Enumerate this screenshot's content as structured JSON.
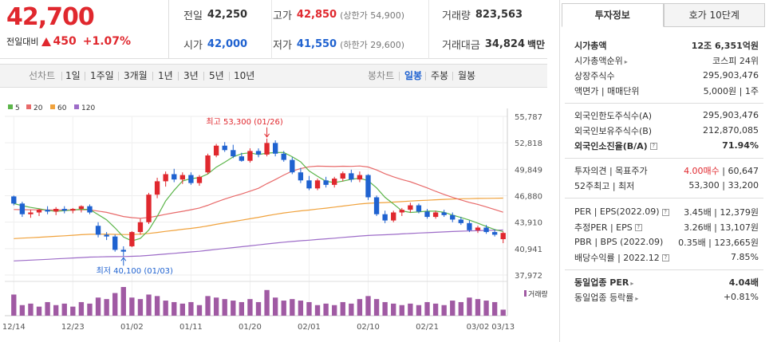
{
  "quote": {
    "price": "42,700",
    "change_label": "전일대비",
    "change_amount": "450",
    "change_pct": "+1.07%"
  },
  "stats": {
    "prev_label": "전일",
    "prev": "42,250",
    "high_label": "고가",
    "high": "42,850",
    "upper_limit": "(상한가 54,900)",
    "volume_label": "거래량",
    "volume": "823,563",
    "open_label": "시가",
    "open": "42,000",
    "low_label": "저가",
    "low": "41,550",
    "lower_limit": "(하한가 29,600)",
    "amount_label": "거래대금",
    "amount": "34,824",
    "amount_unit": "백만"
  },
  "toolbar": {
    "line_chart": "선차트",
    "periods": [
      "1일",
      "1주일",
      "3개월",
      "1년",
      "3년",
      "5년",
      "10년"
    ],
    "candle_chart": "봉차트",
    "candle_periods": [
      "일봉",
      "주봉",
      "월봉"
    ],
    "active_candle": "일봉"
  },
  "colors": {
    "up": "#e0282e",
    "down": "#1f62d0",
    "ma5": "#5cb54a",
    "ma20": "#e86a6a",
    "ma60": "#f0a23c",
    "ma120": "#9d6cc8"
  },
  "chart_data": {
    "type": "candlestick",
    "legend": [
      {
        "name": "5",
        "color": "#5cb54a"
      },
      {
        "name": "20",
        "color": "#e86a6a"
      },
      {
        "name": "60",
        "color": "#f0a23c"
      },
      {
        "name": "120",
        "color": "#9d6cc8"
      }
    ],
    "y_ticks": [
      55787,
      52818,
      49849,
      46880,
      43910,
      40941,
      37972
    ],
    "y_tick_labels": [
      "55,787",
      "52,818",
      "49,849",
      "46,880",
      "43,910",
      "40,941",
      "37,972"
    ],
    "ylim": [
      37972,
      55787
    ],
    "x_labels": [
      "12/14",
      "12/23",
      "01/02",
      "01/11",
      "01/20",
      "02/01",
      "02/10",
      "02/21",
      "03/02",
      "03/13"
    ],
    "annotation_high": "최고 53,300 (01/26)",
    "annotation_low": "최저 40,100 (01/03)",
    "volume_label": "거래량",
    "candles": [
      [
        46800,
        46900,
        45800,
        46000
      ],
      [
        46000,
        46200,
        44500,
        44800
      ],
      [
        44800,
        45300,
        44400,
        45000
      ],
      [
        45000,
        45400,
        44600,
        45300
      ],
      [
        45300,
        45700,
        44800,
        45100
      ],
      [
        45100,
        45600,
        44700,
        45400
      ],
      [
        45400,
        45700,
        44900,
        45200
      ],
      [
        45200,
        45500,
        44900,
        45400
      ],
      [
        45400,
        45800,
        45000,
        45700
      ],
      [
        45700,
        45900,
        44800,
        45000
      ],
      [
        43500,
        43900,
        42200,
        42500
      ],
      [
        42500,
        42800,
        41900,
        42300
      ],
      [
        42300,
        42500,
        40600,
        40800
      ],
      [
        40800,
        41200,
        40100,
        40600
      ],
      [
        41200,
        42900,
        41100,
        42800
      ],
      [
        42800,
        44300,
        42500,
        43900
      ],
      [
        43900,
        47200,
        43700,
        47000
      ],
      [
        47000,
        48900,
        46600,
        48500
      ],
      [
        48500,
        49600,
        47900,
        49300
      ],
      [
        49300,
        49900,
        48400,
        48700
      ],
      [
        48700,
        49500,
        48200,
        49200
      ],
      [
        49200,
        49500,
        48100,
        48300
      ],
      [
        48300,
        49200,
        48000,
        49000
      ],
      [
        49500,
        51600,
        49300,
        51400
      ],
      [
        51400,
        52700,
        51200,
        52500
      ],
      [
        52500,
        52900,
        51800,
        52000
      ],
      [
        52000,
        52600,
        51100,
        51300
      ],
      [
        51300,
        51700,
        50700,
        50800
      ],
      [
        50800,
        52200,
        50600,
        51900
      ],
      [
        51900,
        52200,
        51200,
        51500
      ],
      [
        51500,
        53300,
        51300,
        52800
      ],
      [
        52800,
        53100,
        51300,
        51600
      ],
      [
        51600,
        51900,
        50700,
        50900
      ],
      [
        50900,
        51200,
        49300,
        49500
      ],
      [
        49500,
        50000,
        48300,
        48600
      ],
      [
        48600,
        49100,
        47500,
        47700
      ],
      [
        47700,
        48800,
        47500,
        48600
      ],
      [
        48600,
        49000,
        47800,
        48100
      ],
      [
        48100,
        49000,
        47800,
        48800
      ],
      [
        48800,
        49600,
        48500,
        49400
      ],
      [
        49400,
        49800,
        48400,
        48700
      ],
      [
        48700,
        49600,
        48400,
        49200
      ],
      [
        49200,
        49300,
        46400,
        46700
      ],
      [
        46700,
        46900,
        44600,
        44800
      ],
      [
        44800,
        45200,
        43800,
        44100
      ],
      [
        44100,
        45200,
        43900,
        45000
      ],
      [
        45000,
        45500,
        44600,
        45300
      ],
      [
        45300,
        46100,
        45000,
        45800
      ],
      [
        45800,
        46000,
        44900,
        45100
      ],
      [
        45100,
        45400,
        44300,
        44500
      ],
      [
        44500,
        45200,
        44300,
        45000
      ],
      [
        45000,
        45300,
        44500,
        44700
      ],
      [
        44700,
        45000,
        43900,
        44200
      ],
      [
        44200,
        44500,
        43600,
        43800
      ],
      [
        43800,
        44100,
        42800,
        43000
      ],
      [
        43000,
        43500,
        42700,
        43300
      ],
      [
        43300,
        43600,
        42600,
        42800
      ],
      [
        42800,
        43100,
        42300,
        42500
      ],
      [
        42000,
        42850,
        41550,
        42700
      ]
    ],
    "volumes": [
      70,
      35,
      40,
      30,
      45,
      35,
      40,
      30,
      45,
      40,
      60,
      55,
      75,
      95,
      60,
      55,
      70,
      65,
      50,
      45,
      40,
      45,
      35,
      65,
      60,
      55,
      50,
      45,
      55,
      45,
      85,
      60,
      50,
      55,
      50,
      45,
      35,
      40,
      35,
      45,
      40,
      55,
      65,
      55,
      45,
      40,
      35,
      40,
      35,
      45,
      40,
      35,
      50,
      45,
      60,
      55,
      50,
      45,
      20
    ]
  },
  "sidebar": {
    "tab_info": "투자정보",
    "tab_hoga": "호가 10단계",
    "rows1": [
      {
        "k": "시가총액",
        "v": "12조 6,351억원",
        "bold": true
      },
      {
        "k": "시가총액순위",
        "v": "코스피 24위",
        "caret": true
      },
      {
        "k": "상장주식수",
        "v": "295,903,476"
      },
      {
        "k": "액면가 | 매매단위",
        "v": "5,000원 | 1주"
      }
    ],
    "rows2": [
      {
        "k": "외국인한도주식수(A)",
        "v": "295,903,476"
      },
      {
        "k": "외국인보유주식수(B)",
        "v": "212,870,085"
      },
      {
        "k": "외국인소진율(B/A)",
        "v": "71.94%",
        "bold": true,
        "q": true
      }
    ],
    "rows3": [
      {
        "k": "투자의견 | 목표주가",
        "v1": "4.00매수",
        "v2": " | 60,647"
      },
      {
        "k": "52주최고 | 최저",
        "v": "53,300 | 33,200"
      }
    ],
    "rows4": [
      {
        "k": "PER | EPS(2022.09)",
        "v": "3.45배 | 12,379원",
        "q": true
      },
      {
        "k": "추정PER | EPS",
        "v": "3.26배 | 13,107원",
        "q": true
      },
      {
        "k": "PBR | BPS (2022.09)",
        "v": "0.35배 | 123,665원"
      },
      {
        "k": "배당수익률 | 2022.12",
        "v": "7.85%",
        "q": true
      }
    ],
    "rows5": [
      {
        "k": "동일업종 PER",
        "v": "4.04배",
        "bold": true,
        "caret": true
      },
      {
        "k": "동일업종 등락률",
        "v": "+0.81%",
        "red": true,
        "caret": true
      }
    ]
  }
}
